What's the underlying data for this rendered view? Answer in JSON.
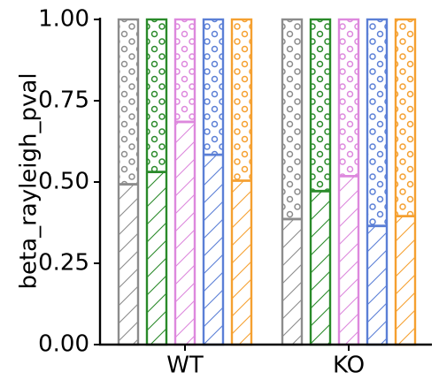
{
  "chart_data": {
    "type": "bar",
    "title": "",
    "xlabel": "",
    "ylabel": "beta_rayleigh_pval",
    "ylim": [
      0,
      1
    ],
    "yticks": [
      "0.00",
      "0.25",
      "0.50",
      "0.75",
      "1.00"
    ],
    "categories": [
      "WT",
      "KO"
    ],
    "grid": false,
    "series": [
      {
        "color": "#8c8c8c",
        "values": [
          0.493,
          0.386
        ]
      },
      {
        "color": "#2a8a2a",
        "values": [
          0.531,
          0.472
        ]
      },
      {
        "color": "#dd88dd",
        "values": [
          0.685,
          0.518
        ]
      },
      {
        "color": "#5b7fd6",
        "values": [
          0.584,
          0.365
        ]
      },
      {
        "color": "#f5a030",
        "values": [
          0.504,
          0.395
        ]
      }
    ]
  }
}
